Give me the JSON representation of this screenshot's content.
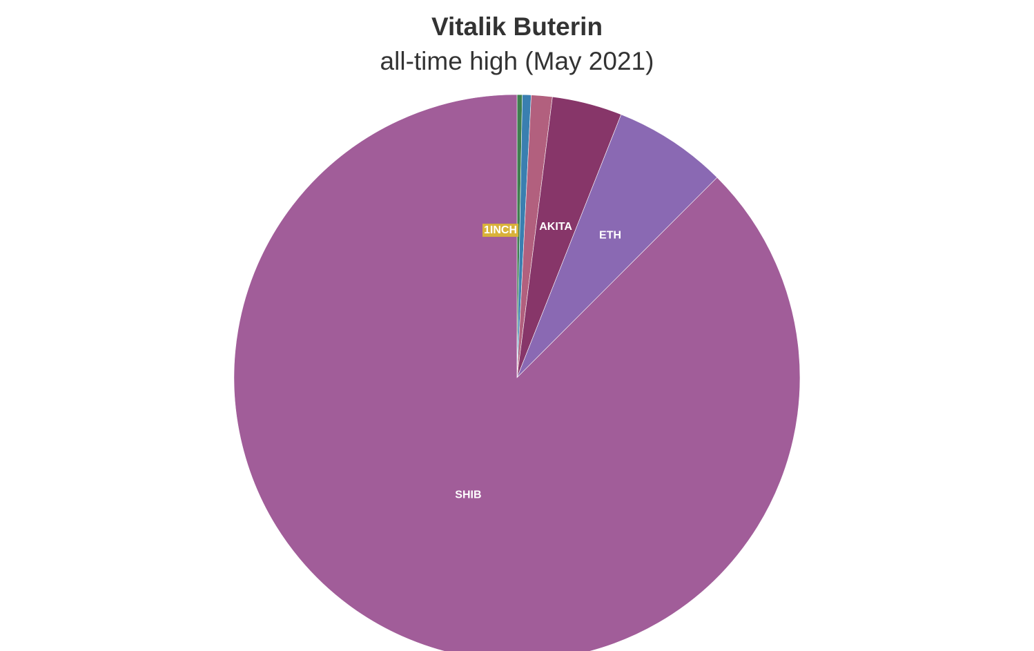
{
  "chart_data": {
    "type": "pie",
    "title": "Vitalik Buterin",
    "subtitle": "all-time high (May 2021)",
    "start_angle_deg": 0,
    "direction": "clockwise",
    "slices": [
      {
        "name": "1INCH",
        "value": 0.3,
        "color": "#3e7f4f",
        "label": "1INCH",
        "label_bg": "#d9b23a"
      },
      {
        "name": "",
        "value": 0.5,
        "color": "#3a7fb0",
        "label": ""
      },
      {
        "name": "",
        "value": 1.2,
        "color": "#b2607e",
        "label": ""
      },
      {
        "name": "AKITA",
        "value": 4.0,
        "color": "#873669",
        "label": "AKITA"
      },
      {
        "name": "ETH",
        "value": 6.5,
        "color": "#8a69b3",
        "label": "ETH"
      },
      {
        "name": "SHIB",
        "value": 87.5,
        "color": "#a15d99",
        "label": "SHIB"
      }
    ]
  }
}
